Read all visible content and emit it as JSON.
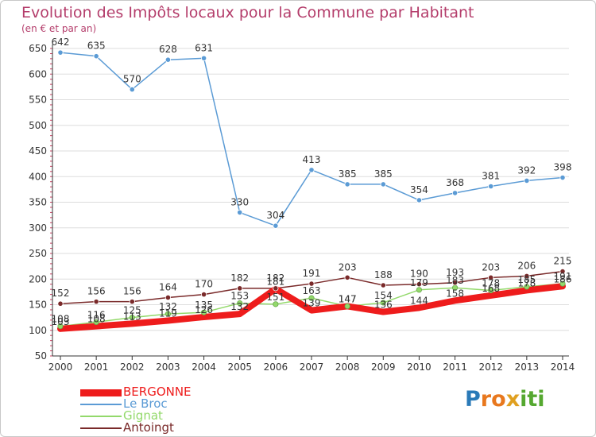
{
  "header": {
    "title": "Evolution des Impôts locaux pour la Commune par Habitant",
    "subtitle": "(en € et par an)"
  },
  "logo": {
    "text": "Proxiti",
    "letters": [
      "P",
      "r",
      "o",
      "x",
      "i",
      "t",
      "i"
    ],
    "colors": [
      "#2a7ab8",
      "#e8781e",
      "#e8781e",
      "#e0a020",
      "#55a830",
      "#55a830",
      "#55a830"
    ]
  },
  "colors": {
    "title": "#b43d6b",
    "grid": "#dddddd",
    "axis": "#333333"
  },
  "chart_data": {
    "type": "line",
    "title": "Evolution des Impôts locaux pour la Commune par Habitant",
    "subtitle": "(en € et par an)",
    "xlabel": "",
    "ylabel": "",
    "x": [
      "2000",
      "2001",
      "2002",
      "2003",
      "2004",
      "2005",
      "2006",
      "2007",
      "2008",
      "2009",
      "2010",
      "2011",
      "2012",
      "2013",
      "2014"
    ],
    "ylim": [
      50,
      650
    ],
    "yticks": [
      50,
      100,
      150,
      200,
      250,
      300,
      350,
      400,
      450,
      500,
      550,
      600,
      650
    ],
    "grid": true,
    "legend_position": "bottom-left",
    "series": [
      {
        "name": "BERGONNE",
        "color": "#ee1c1c",
        "width": 8,
        "values": [
          103,
          108,
          113,
          119,
          126,
          132,
          181,
          139,
          147,
          136,
          144,
          158,
          168,
          178,
          186
        ],
        "labels": [
          "103",
          "108",
          "113",
          "119",
          "126",
          "132",
          "181",
          "139",
          "147",
          "136",
          "144",
          "158",
          "168",
          "178",
          "186"
        ]
      },
      {
        "name": "Le Broc",
        "color": "#5b9bd5",
        "width": 1.5,
        "values": [
          642,
          635,
          570,
          628,
          631,
          330,
          304,
          413,
          385,
          385,
          354,
          368,
          381,
          392,
          398
        ],
        "labels": [
          "642",
          "635",
          "570",
          "628",
          "631",
          "330",
          "304",
          "413",
          "385",
          "385",
          "354",
          "368",
          "381",
          "392",
          "398"
        ]
      },
      {
        "name": "Gignat",
        "color": "#93d96b",
        "width": 1.5,
        "values": [
          108,
          116,
          125,
          132,
          135,
          153,
          151,
          163,
          147,
          154,
          179,
          183,
          178,
          185,
          191
        ],
        "labels": [
          "108",
          "116",
          "125",
          "132",
          "135",
          "153",
          "151",
          "163",
          "147",
          "154",
          "179",
          "183",
          "178",
          "185",
          "191"
        ]
      },
      {
        "name": "Antoingt",
        "color": "#7a2a2a",
        "width": 1.5,
        "values": [
          152,
          156,
          156,
          164,
          170,
          182,
          182,
          191,
          203,
          188,
          190,
          193,
          203,
          206,
          215
        ],
        "labels": [
          "152",
          "156",
          "156",
          "164",
          "170",
          "182",
          "182",
          "191",
          "203",
          "188",
          "190",
          "193",
          "203",
          "206",
          "215"
        ]
      }
    ]
  }
}
